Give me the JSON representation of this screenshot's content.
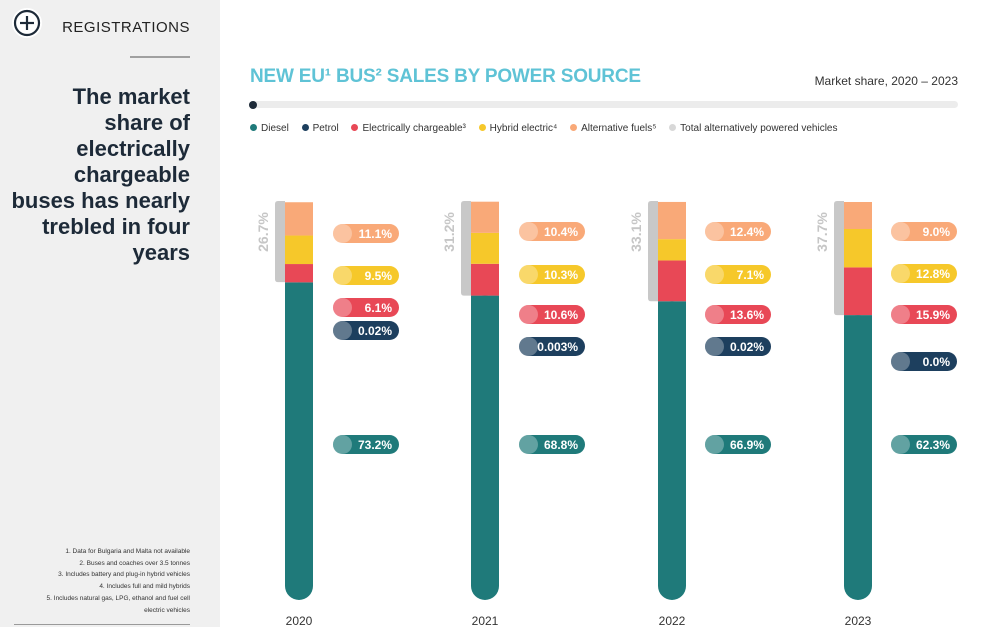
{
  "sidebar": {
    "section_label": "REGISTRATIONS",
    "headline": "The market share of electrically chargeable buses has nearly trebled in four years",
    "footnotes": [
      "1. Data for Bulgaria and Malta not available",
      "2. Buses and coaches over 3.5 tonnes",
      "3. Includes battery and plug-in hybrid vehicles",
      "4. Includes full and mild hybrids",
      "5. Includes natural gas, LPG, ethanol and fuel cell",
      "electric vehicles"
    ]
  },
  "chart_data": {
    "type": "bar",
    "title": "NEW EU¹ BUS² SALES BY POWER SOURCE",
    "subtitle": "Market share, 2020 – 2023",
    "categories": [
      "2020",
      "2021",
      "2022",
      "2023"
    ],
    "series": [
      {
        "name": "Diesel",
        "color": "#1f7a7a",
        "values": [
          73.2,
          68.8,
          66.9,
          62.3
        ],
        "labels": [
          "73.2%",
          "68.8%",
          "66.9%",
          "62.3%"
        ]
      },
      {
        "name": "Petrol",
        "color": "#1d3f5e",
        "values": [
          0.02,
          0.003,
          0.02,
          0.0
        ],
        "labels": [
          "0.02%",
          "0.003%",
          "0.02%",
          "0.0%"
        ]
      },
      {
        "name": "Electrically chargeable³",
        "color": "#e84856",
        "values": [
          6.1,
          10.6,
          13.6,
          15.9
        ],
        "labels": [
          "6.1%",
          "10.6%",
          "13.6%",
          "15.9%"
        ]
      },
      {
        "name": "Hybrid electric⁴",
        "color": "#f6c82a",
        "values": [
          9.5,
          10.3,
          7.1,
          12.8
        ],
        "labels": [
          "9.5%",
          "10.3%",
          "7.1%",
          "12.8%"
        ]
      },
      {
        "name": "Alternative fuels⁵",
        "color": "#f9a978",
        "values": [
          11.1,
          10.4,
          12.4,
          9.0
        ],
        "labels": [
          "11.1%",
          "10.4%",
          "12.4%",
          "9.0%"
        ]
      }
    ],
    "total_alternatively_powered": {
      "name": "Total alternatively powered vehicles",
      "color": "#c8c8c8",
      "values": [
        26.7,
        31.2,
        33.1,
        37.7
      ],
      "labels": [
        "26.7%",
        "31.2%",
        "33.1%",
        "37.7%"
      ]
    },
    "legend": [
      "Diesel",
      "Petrol",
      "Electrically chargeable³",
      "Hybrid electric⁴",
      "Alternative fuels⁵",
      "Total alternatively powered vehicles"
    ],
    "stack_order_bottom_to_top": [
      "Diesel",
      "Petrol",
      "Electrically chargeable³",
      "Hybrid electric⁴",
      "Alternative fuels⁵"
    ],
    "ylim": [
      0,
      100
    ]
  }
}
